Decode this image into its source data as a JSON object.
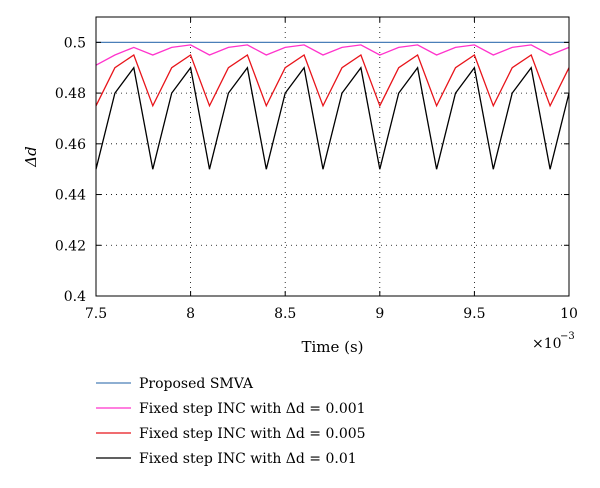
{
  "chart_data": {
    "type": "line",
    "xlabel": "Time (s)",
    "ylabel": "Δd",
    "x_exponent_label": "×10",
    "x_exponent_power": "−3",
    "xlim": [
      7.5,
      10
    ],
    "ylim": [
      0.4,
      0.51
    ],
    "xticks": [
      7.5,
      8,
      8.5,
      9,
      9.5,
      10
    ],
    "xtick_labels": [
      "7.5",
      "8",
      "8.5",
      "9",
      "9.5",
      "10"
    ],
    "yticks": [
      0.4,
      0.42,
      0.44,
      0.46,
      0.48,
      0.5
    ],
    "ytick_labels": [
      "0.4",
      "0.42",
      "0.44",
      "0.46",
      "0.48",
      "0.5"
    ],
    "grid": true,
    "legend_position": "bottom-outside",
    "series": [
      {
        "name": "Proposed SMVA",
        "color": "#4a7fb8",
        "x": [
          7.5,
          10
        ],
        "y": [
          0.5,
          0.5
        ]
      },
      {
        "name": "Fixed step INC with Δd = 0.001",
        "color": "#ff33cc",
        "x": [
          7.5,
          7.6,
          7.7,
          7.8,
          7.9,
          8.0,
          8.1,
          8.2,
          8.3,
          8.4,
          8.5,
          8.6,
          8.7,
          8.8,
          8.9,
          9.0,
          9.1,
          9.2,
          9.3,
          9.4,
          9.5,
          9.6,
          9.7,
          9.8,
          9.9,
          10.0
        ],
        "y": [
          0.491,
          0.495,
          0.498,
          0.495,
          0.498,
          0.499,
          0.495,
          0.498,
          0.499,
          0.495,
          0.498,
          0.499,
          0.495,
          0.498,
          0.499,
          0.495,
          0.498,
          0.499,
          0.495,
          0.498,
          0.499,
          0.495,
          0.498,
          0.499,
          0.495,
          0.498
        ]
      },
      {
        "name": "Fixed step INC with Δd = 0.005",
        "color": "#e8141a",
        "x": [
          7.5,
          7.6,
          7.7,
          7.8,
          7.9,
          8.0,
          8.1,
          8.2,
          8.3,
          8.4,
          8.5,
          8.6,
          8.7,
          8.8,
          8.9,
          9.0,
          9.1,
          9.2,
          9.3,
          9.4,
          9.5,
          9.6,
          9.7,
          9.8,
          9.9,
          10.0
        ],
        "y": [
          0.475,
          0.49,
          0.495,
          0.475,
          0.49,
          0.495,
          0.475,
          0.49,
          0.495,
          0.475,
          0.49,
          0.495,
          0.475,
          0.49,
          0.495,
          0.475,
          0.49,
          0.495,
          0.475,
          0.49,
          0.495,
          0.475,
          0.49,
          0.495,
          0.475,
          0.49
        ]
      },
      {
        "name": "Fixed step INC with Δd = 0.01",
        "color": "#000000",
        "x": [
          7.5,
          7.6,
          7.7,
          7.8,
          7.9,
          8.0,
          8.1,
          8.2,
          8.3,
          8.4,
          8.5,
          8.6,
          8.7,
          8.8,
          8.9,
          9.0,
          9.1,
          9.2,
          9.3,
          9.4,
          9.5,
          9.6,
          9.7,
          9.8,
          9.9,
          10.0
        ],
        "y": [
          0.45,
          0.48,
          0.49,
          0.45,
          0.48,
          0.49,
          0.45,
          0.48,
          0.49,
          0.45,
          0.48,
          0.49,
          0.45,
          0.48,
          0.49,
          0.45,
          0.48,
          0.49,
          0.45,
          0.48,
          0.49,
          0.45,
          0.48,
          0.49,
          0.45,
          0.48
        ]
      }
    ]
  }
}
